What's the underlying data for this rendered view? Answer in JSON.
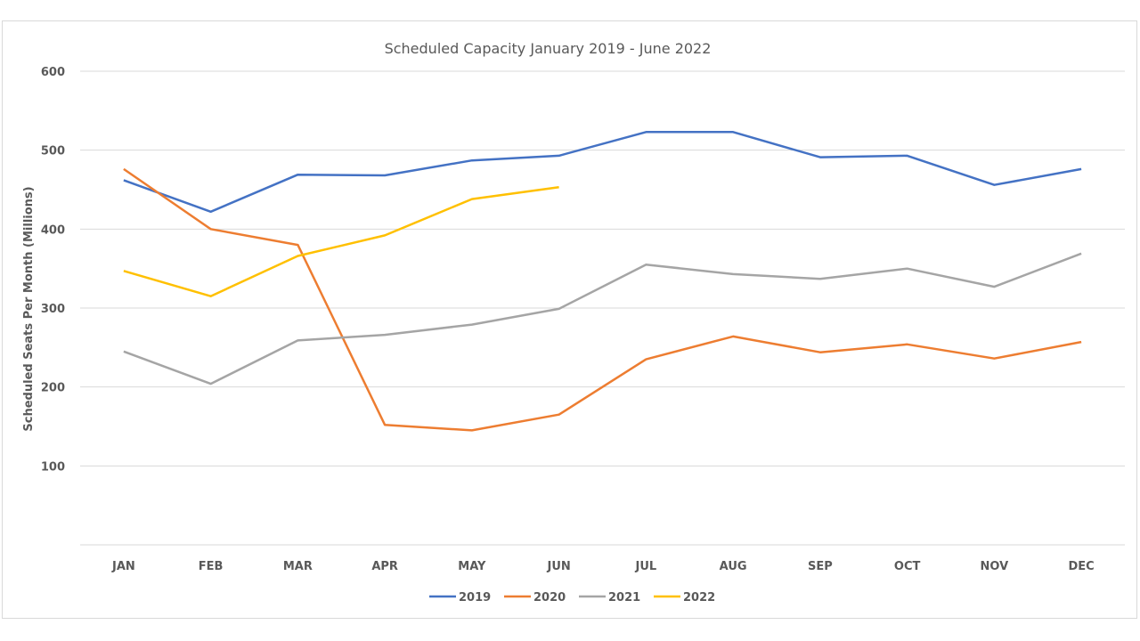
{
  "chart_data": {
    "type": "line",
    "title": "Scheduled Capacity January 2019   - June 2022",
    "xlabel": "",
    "ylabel": "Scheduled Seats Per Month (Millions)",
    "ylim": [
      0,
      600
    ],
    "yticks": [
      100,
      200,
      300,
      400,
      500,
      600
    ],
    "ytick_labels": [
      "100",
      "200",
      "300",
      "400",
      "500",
      "600"
    ],
    "grid": true,
    "legend_position": "bottom",
    "categories": [
      "JAN",
      "FEB",
      "MAR",
      "APR",
      "MAY",
      "JUN",
      "JUL",
      "AUG",
      "SEP",
      "OCT",
      "NOV",
      "DEC"
    ],
    "series": [
      {
        "name": "2019",
        "color": "#4472c4",
        "values": [
          462,
          422,
          469,
          468,
          487,
          493,
          523,
          523,
          491,
          493,
          456,
          476
        ]
      },
      {
        "name": "2020",
        "color": "#ed7d31",
        "values": [
          476,
          400,
          380,
          152,
          145,
          165,
          235,
          264,
          244,
          254,
          236,
          257
        ]
      },
      {
        "name": "2021",
        "color": "#a5a5a5",
        "values": [
          245,
          204,
          259,
          266,
          279,
          299,
          355,
          343,
          337,
          350,
          327,
          369
        ]
      },
      {
        "name": "2022",
        "color": "#ffc000",
        "values": [
          347,
          315,
          366,
          392,
          438,
          453,
          null,
          null,
          null,
          null,
          null,
          null
        ]
      }
    ]
  }
}
